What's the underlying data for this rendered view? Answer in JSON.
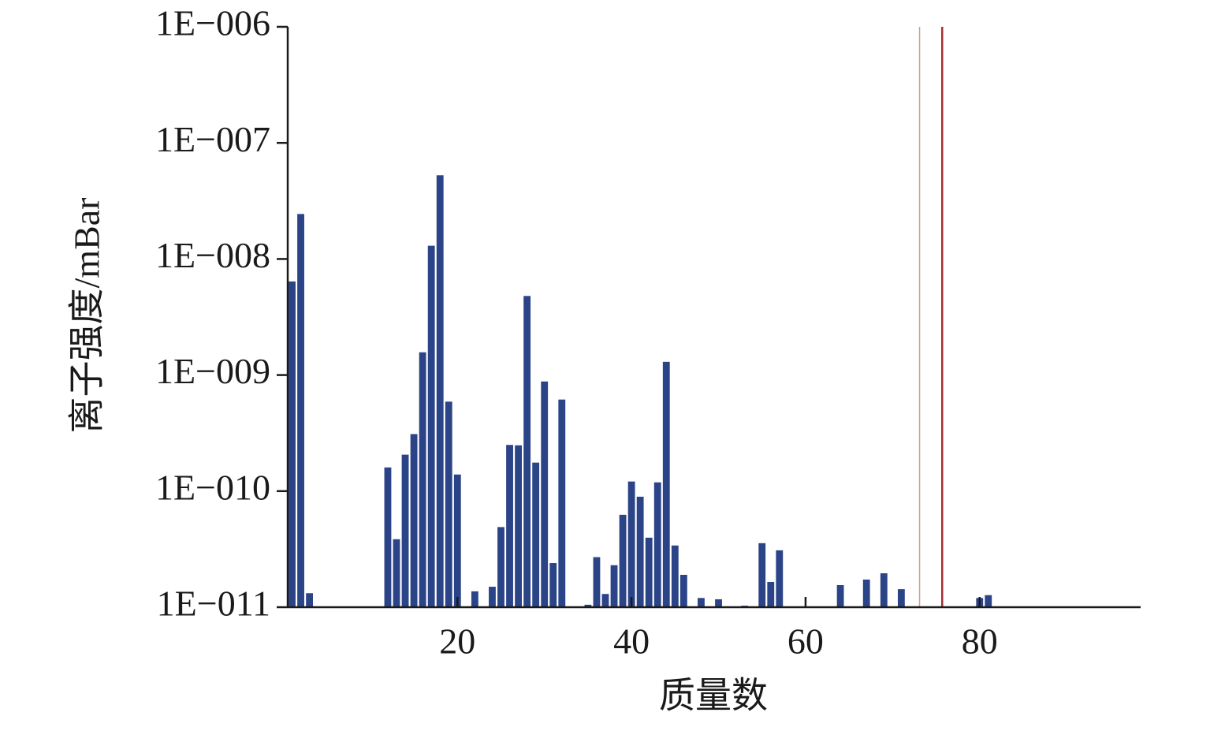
{
  "chart_data": {
    "type": "bar",
    "log_y": true,
    "xlabel": "质量数",
    "ylabel": "离子强度/mBar",
    "x": [
      1,
      2,
      3,
      12,
      13,
      14,
      15,
      16,
      17,
      18,
      19,
      20,
      22,
      24,
      25,
      26,
      27,
      28,
      29,
      30,
      31,
      32,
      35,
      36,
      37,
      38,
      39,
      40,
      41,
      42,
      43,
      44,
      45,
      46,
      48,
      50,
      53,
      55,
      56,
      57,
      64,
      67,
      69,
      71,
      80,
      81
    ],
    "values": [
      6.4e-09,
      2.44e-08,
      1.32e-11,
      1.6e-10,
      3.85e-11,
      2.06e-10,
      3.1e-10,
      1.57e-09,
      1.3e-08,
      5.26e-08,
      5.9e-10,
      1.39e-10,
      1.37e-11,
      1.5e-11,
      4.9e-11,
      2.5e-10,
      2.48e-10,
      4.8e-09,
      1.76e-10,
      8.8e-10,
      2.4e-11,
      6.15e-10,
      1.05e-11,
      2.7e-11,
      1.3e-11,
      2.3e-11,
      6.25e-11,
      1.21e-10,
      8.95e-11,
      3.97e-11,
      1.19e-10,
      1.3e-09,
      3.4e-11,
      1.9e-11,
      1.2e-11,
      1.17e-11,
      1.03e-11,
      3.56e-11,
      1.65e-11,
      3.09e-11,
      1.55e-11,
      1.73e-11,
      1.96e-11,
      1.43e-11,
      1.2e-11,
      1.27e-11
    ],
    "color": "#2b4488",
    "vlines": [
      {
        "x": 73.1,
        "color": "#c9a29a"
      },
      {
        "x": 75.7,
        "color": "#a33030"
      }
    ],
    "xlim": [
      0.5,
      98.5
    ],
    "xticks": [
      20,
      40,
      60,
      80
    ],
    "ylim": [
      1e-11,
      1e-06
    ],
    "yticks": [
      {
        "value": 1e-11,
        "label": "1E−011"
      },
      {
        "value": 1e-10,
        "label": "1E−010"
      },
      {
        "value": 1e-09,
        "label": "1E−009"
      },
      {
        "value": 1e-08,
        "label": "1E−008"
      },
      {
        "value": 1e-07,
        "label": "1E−007"
      },
      {
        "value": 1e-06,
        "label": "1E−006"
      }
    ]
  }
}
